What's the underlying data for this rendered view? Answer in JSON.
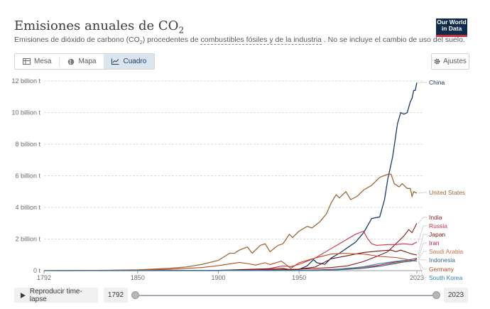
{
  "header": {
    "title": "Emisiones anuales de CO",
    "title_sub": "2",
    "subtitle_pre": "Emisiones de dióxido de carbono (CO",
    "subtitle_sub": "2",
    "subtitle_mid": ") procedentes de ",
    "subtitle_link": "combustibles fósiles y de la industria",
    "subtitle_post": " . No se incluye el cambio de uso del suelo.",
    "logo_line1": "Our World",
    "logo_line2": "in Data"
  },
  "tabs": [
    {
      "label": "Mesa",
      "icon": "table-icon",
      "active": false
    },
    {
      "label": "Mapa",
      "icon": "globe-icon",
      "active": false
    },
    {
      "label": "Cuadro",
      "icon": "line-chart-icon",
      "active": true
    }
  ],
  "settings_label": "Ajustes",
  "timeline": {
    "play_label": "Reproducir time-lapse",
    "start_year": "1792",
    "end_year": "2023"
  },
  "colors": {
    "China": "#1a3a66",
    "United States": "#9c6a3a",
    "India": "#8a1e1e",
    "Russia": "#cf2e4a",
    "Japan": "#6e1a12",
    "Iran": "#a81c3a",
    "Saudi Arabia": "#cf6c4a",
    "Indonesia": "#3b6c8a",
    "Germany": "#b84a1f",
    "South Korea": "#2f7fb0"
  },
  "chart_data": {
    "type": "line",
    "unit": "t",
    "xlim": [
      1792,
      2023
    ],
    "ylim": [
      0,
      12000000000
    ],
    "x_ticks": [
      "1792",
      "1850",
      "1900",
      "1950",
      "2023"
    ],
    "y_ticks": [
      {
        "value": 0,
        "label": "0 t"
      },
      {
        "value": 2000000000,
        "label": "2 billion t"
      },
      {
        "value": 4000000000,
        "label": "4 billion t"
      },
      {
        "value": 6000000000,
        "label": "6 billion t"
      },
      {
        "value": 8000000000,
        "label": "8 billion t"
      },
      {
        "value": 10000000000,
        "label": "10 billion t"
      },
      {
        "value": 12000000000,
        "label": "12 billion t"
      }
    ],
    "grid": true,
    "legend": "right (end labels)",
    "series": [
      {
        "name": "China",
        "points": [
          [
            1792,
            0
          ],
          [
            1900,
            0
          ],
          [
            1950,
            80000000
          ],
          [
            1955,
            300000000
          ],
          [
            1959,
            700000000
          ],
          [
            1961,
            500000000
          ],
          [
            1966,
            400000000
          ],
          [
            1970,
            800000000
          ],
          [
            1975,
            1100000000
          ],
          [
            1980,
            1450000000
          ],
          [
            1985,
            1800000000
          ],
          [
            1990,
            2400000000
          ],
          [
            1995,
            3300000000
          ],
          [
            2000,
            3400000000
          ],
          [
            2003,
            4500000000
          ],
          [
            2005,
            5800000000
          ],
          [
            2008,
            7200000000
          ],
          [
            2011,
            9300000000
          ],
          [
            2013,
            10000000000
          ],
          [
            2015,
            9900000000
          ],
          [
            2017,
            10000000000
          ],
          [
            2019,
            10700000000
          ],
          [
            2020,
            10900000000
          ],
          [
            2021,
            11400000000
          ],
          [
            2022,
            11400000000
          ],
          [
            2023,
            11900000000
          ]
        ]
      },
      {
        "name": "United States",
        "points": [
          [
            1792,
            0
          ],
          [
            1820,
            10000000
          ],
          [
            1850,
            50000000
          ],
          [
            1870,
            150000000
          ],
          [
            1880,
            230000000
          ],
          [
            1890,
            400000000
          ],
          [
            1900,
            650000000
          ],
          [
            1907,
            1100000000
          ],
          [
            1910,
            1100000000
          ],
          [
            1913,
            1300000000
          ],
          [
            1918,
            1500000000
          ],
          [
            1921,
            1100000000
          ],
          [
            1926,
            1600000000
          ],
          [
            1929,
            1700000000
          ],
          [
            1932,
            1200000000
          ],
          [
            1937,
            1600000000
          ],
          [
            1940,
            1700000000
          ],
          [
            1944,
            2300000000
          ],
          [
            1946,
            2100000000
          ],
          [
            1950,
            2500000000
          ],
          [
            1955,
            2800000000
          ],
          [
            1958,
            2700000000
          ],
          [
            1963,
            3100000000
          ],
          [
            1967,
            3600000000
          ],
          [
            1970,
            4300000000
          ],
          [
            1973,
            4800000000
          ],
          [
            1975,
            4600000000
          ],
          [
            1979,
            5000000000
          ],
          [
            1982,
            4500000000
          ],
          [
            1986,
            4700000000
          ],
          [
            1990,
            5100000000
          ],
          [
            1995,
            5400000000
          ],
          [
            2000,
            5900000000
          ],
          [
            2005,
            6100000000
          ],
          [
            2007,
            6100000000
          ],
          [
            2009,
            5500000000
          ],
          [
            2012,
            5300000000
          ],
          [
            2014,
            5500000000
          ],
          [
            2017,
            5200000000
          ],
          [
            2019,
            5200000000
          ],
          [
            2020,
            4700000000
          ],
          [
            2021,
            5000000000
          ],
          [
            2023,
            4900000000
          ]
        ]
      },
      {
        "name": "India",
        "points": [
          [
            1792,
            0
          ],
          [
            1900,
            20000000
          ],
          [
            1950,
            80000000
          ],
          [
            1970,
            200000000
          ],
          [
            1980,
            300000000
          ],
          [
            1990,
            580000000
          ],
          [
            2000,
            980000000
          ],
          [
            2005,
            1200000000
          ],
          [
            2010,
            1700000000
          ],
          [
            2015,
            2200000000
          ],
          [
            2018,
            2600000000
          ],
          [
            2020,
            2400000000
          ],
          [
            2023,
            3000000000
          ]
        ]
      },
      {
        "name": "Russia",
        "points": [
          [
            1792,
            0
          ],
          [
            1900,
            20000000
          ],
          [
            1920,
            40000000
          ],
          [
            1930,
            100000000
          ],
          [
            1940,
            300000000
          ],
          [
            1945,
            250000000
          ],
          [
            1950,
            400000000
          ],
          [
            1960,
            800000000
          ],
          [
            1970,
            1400000000
          ],
          [
            1980,
            2000000000
          ],
          [
            1985,
            2300000000
          ],
          [
            1990,
            2500000000
          ],
          [
            1992,
            2100000000
          ],
          [
            1995,
            1700000000
          ],
          [
            1998,
            1600000000
          ],
          [
            2005,
            1650000000
          ],
          [
            2010,
            1650000000
          ],
          [
            2015,
            1700000000
          ],
          [
            2020,
            1650000000
          ],
          [
            2023,
            1800000000
          ]
        ]
      },
      {
        "name": "Japan",
        "points": [
          [
            1792,
            0
          ],
          [
            1900,
            20000000
          ],
          [
            1940,
            150000000
          ],
          [
            1945,
            50000000
          ],
          [
            1950,
            100000000
          ],
          [
            1960,
            230000000
          ],
          [
            1970,
            750000000
          ],
          [
            1980,
            950000000
          ],
          [
            1990,
            1150000000
          ],
          [
            2000,
            1250000000
          ],
          [
            2007,
            1300000000
          ],
          [
            2010,
            1200000000
          ],
          [
            2013,
            1300000000
          ],
          [
            2020,
            1050000000
          ],
          [
            2023,
            990000000
          ]
        ]
      },
      {
        "name": "Iran",
        "points": [
          [
            1792,
            0
          ],
          [
            1950,
            10000000
          ],
          [
            1970,
            80000000
          ],
          [
            1980,
            120000000
          ],
          [
            1990,
            200000000
          ],
          [
            2000,
            350000000
          ],
          [
            2010,
            550000000
          ],
          [
            2020,
            720000000
          ],
          [
            2023,
            780000000
          ]
        ]
      },
      {
        "name": "Saudi Arabia",
        "points": [
          [
            1792,
            0
          ],
          [
            1950,
            5000000
          ],
          [
            1970,
            40000000
          ],
          [
            1980,
            160000000
          ],
          [
            1990,
            200000000
          ],
          [
            2000,
            270000000
          ],
          [
            2010,
            480000000
          ],
          [
            2015,
            600000000
          ],
          [
            2020,
            630000000
          ],
          [
            2023,
            700000000
          ]
        ]
      },
      {
        "name": "Indonesia",
        "points": [
          [
            1792,
            0
          ],
          [
            1950,
            10000000
          ],
          [
            1970,
            30000000
          ],
          [
            1980,
            80000000
          ],
          [
            1990,
            150000000
          ],
          [
            2000,
            280000000
          ],
          [
            2010,
            450000000
          ],
          [
            2015,
            550000000
          ],
          [
            2020,
            600000000
          ],
          [
            2023,
            730000000
          ]
        ]
      },
      {
        "name": "Germany",
        "points": [
          [
            1792,
            0
          ],
          [
            1830,
            10000000
          ],
          [
            1850,
            30000000
          ],
          [
            1870,
            80000000
          ],
          [
            1890,
            200000000
          ],
          [
            1900,
            320000000
          ],
          [
            1913,
            520000000
          ],
          [
            1918,
            450000000
          ],
          [
            1923,
            350000000
          ],
          [
            1929,
            500000000
          ],
          [
            1932,
            380000000
          ],
          [
            1939,
            600000000
          ],
          [
            1945,
            150000000
          ],
          [
            1950,
            500000000
          ],
          [
            1960,
            800000000
          ],
          [
            1970,
            1050000000
          ],
          [
            1979,
            1100000000
          ],
          [
            1985,
            1050000000
          ],
          [
            1990,
            1050000000
          ],
          [
            2000,
            900000000
          ],
          [
            2010,
            830000000
          ],
          [
            2020,
            650000000
          ],
          [
            2023,
            600000000
          ]
        ]
      },
      {
        "name": "South Korea",
        "points": [
          [
            1792,
            0
          ],
          [
            1960,
            10000000
          ],
          [
            1970,
            50000000
          ],
          [
            1980,
            130000000
          ],
          [
            1990,
            250000000
          ],
          [
            2000,
            450000000
          ],
          [
            2010,
            590000000
          ],
          [
            2018,
            680000000
          ],
          [
            2020,
            620000000
          ],
          [
            2023,
            600000000
          ]
        ]
      }
    ]
  }
}
